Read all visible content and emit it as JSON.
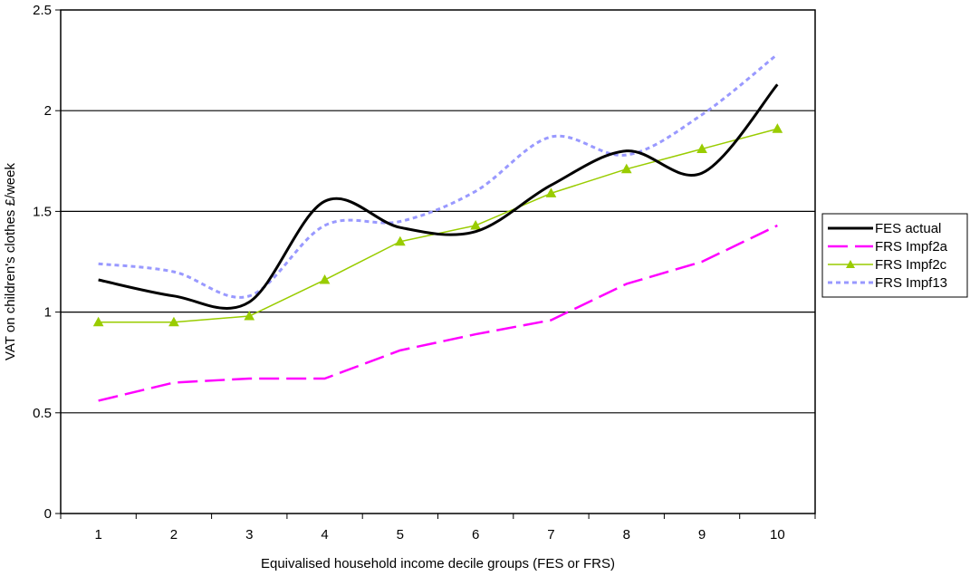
{
  "chart_data": {
    "type": "line",
    "title": "",
    "xlabel": "Equivalised household income decile groups (FES or FRS)",
    "ylabel": "VAT on children's clothes £/week",
    "categories": [
      "1",
      "2",
      "3",
      "4",
      "5",
      "6",
      "7",
      "8",
      "9",
      "10"
    ],
    "ylim": [
      0,
      2.5
    ],
    "yticks": [
      "0",
      "0.5",
      "1",
      "1.5",
      "2",
      "2.5"
    ],
    "grid": "horizontal major gridlines",
    "legend_position": "right",
    "series": [
      {
        "name": "FES actual",
        "values": [
          1.16,
          1.08,
          1.05,
          1.55,
          1.42,
          1.4,
          1.63,
          1.8,
          1.69,
          2.13
        ],
        "color": "#000000",
        "style": "solid-smooth"
      },
      {
        "name": "FRS Impf2a",
        "values": [
          0.56,
          0.65,
          0.67,
          0.67,
          0.81,
          0.89,
          0.96,
          1.14,
          1.25,
          1.43
        ],
        "color": "#ff00ff",
        "style": "long-dash"
      },
      {
        "name": "FRS Impf2c",
        "values": [
          0.95,
          0.95,
          0.98,
          1.16,
          1.35,
          1.43,
          1.59,
          1.71,
          1.81,
          1.91
        ],
        "color": "#99cc00",
        "style": "solid-triangle"
      },
      {
        "name": "FRS Impf13",
        "values": [
          1.24,
          1.2,
          1.08,
          1.43,
          1.45,
          1.6,
          1.87,
          1.78,
          1.98,
          2.28
        ],
        "color": "#9999ff",
        "style": "dotted-smooth"
      }
    ]
  }
}
